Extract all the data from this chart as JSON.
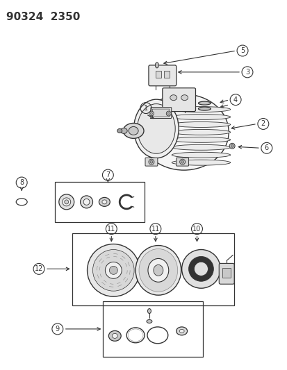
{
  "title": "90324  2350",
  "bg_color": "#ffffff",
  "line_color": "#333333",
  "title_fontsize": 11,
  "figsize": [
    4.14,
    5.33
  ],
  "dpi": 100
}
